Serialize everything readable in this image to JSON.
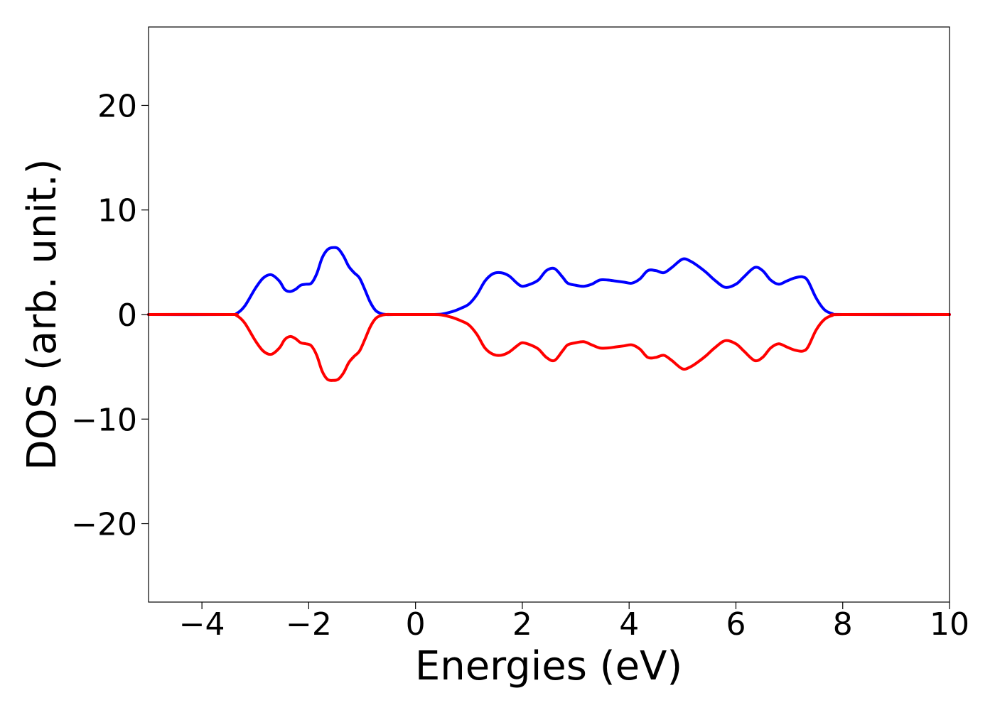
{
  "chart_data": {
    "type": "line",
    "xlabel": "Energies (eV)",
    "ylabel": "DOS (arb. unit.)",
    "xlim": [
      -5,
      10
    ],
    "ylim": [
      -27.5,
      27.5
    ],
    "xticks": [
      -4,
      -2,
      0,
      2,
      4,
      6,
      8,
      10
    ],
    "xtick_labels": [
      "−4",
      "−2",
      "0",
      "2",
      "4",
      "6",
      "8",
      "10"
    ],
    "yticks": [
      -20,
      -10,
      0,
      10,
      20
    ],
    "ytick_labels": [
      "−20",
      "−10",
      "0",
      "10",
      "20"
    ],
    "grid": false,
    "legend": "none",
    "series": [
      {
        "color": "#0000ff",
        "x": [
          -5,
          -3.5,
          -3.35,
          -3.2,
          -3.0,
          -2.85,
          -2.7,
          -2.55,
          -2.45,
          -2.35,
          -2.25,
          -2.15,
          -2.05,
          -1.95,
          -1.85,
          -1.75,
          -1.65,
          -1.55,
          -1.45,
          -1.35,
          -1.25,
          -1.15,
          -1.05,
          -0.95,
          -0.85,
          -0.75,
          -0.65,
          -0.55,
          -0.4,
          0.3,
          0.5,
          0.7,
          0.85,
          1.0,
          1.15,
          1.3,
          1.45,
          1.6,
          1.75,
          1.9,
          2.0,
          2.15,
          2.3,
          2.45,
          2.6,
          2.75,
          2.85,
          3.0,
          3.15,
          3.3,
          3.45,
          3.6,
          3.75,
          3.9,
          4.05,
          4.2,
          4.35,
          4.5,
          4.65,
          4.8,
          5.0,
          5.15,
          5.3,
          5.45,
          5.6,
          5.8,
          6.0,
          6.15,
          6.35,
          6.5,
          6.65,
          6.8,
          6.95,
          7.1,
          7.25,
          7.35,
          7.5,
          7.65,
          7.8,
          8.0,
          10
        ],
        "y": [
          0,
          0,
          0.1,
          0.8,
          2.5,
          3.5,
          3.8,
          3.2,
          2.4,
          2.2,
          2.4,
          2.8,
          2.9,
          3.0,
          3.9,
          5.4,
          6.2,
          6.4,
          6.3,
          5.6,
          4.6,
          4.0,
          3.5,
          2.4,
          1.2,
          0.4,
          0.1,
          0.0,
          0,
          0,
          0.05,
          0.3,
          0.6,
          1.0,
          1.9,
          3.2,
          3.9,
          4.0,
          3.7,
          3.0,
          2.7,
          2.9,
          3.3,
          4.2,
          4.4,
          3.6,
          3.0,
          2.8,
          2.7,
          2.9,
          3.3,
          3.3,
          3.2,
          3.1,
          3.0,
          3.4,
          4.2,
          4.2,
          4.0,
          4.5,
          5.3,
          5.1,
          4.6,
          4.0,
          3.3,
          2.6,
          2.9,
          3.6,
          4.5,
          4.2,
          3.3,
          2.9,
          3.2,
          3.5,
          3.6,
          3.2,
          1.6,
          0.5,
          0.1,
          0,
          0
        ]
      },
      {
        "color": "#ff0000",
        "x": [
          -5,
          -3.5,
          -3.35,
          -3.2,
          -3.0,
          -2.85,
          -2.7,
          -2.55,
          -2.45,
          -2.35,
          -2.25,
          -2.15,
          -2.05,
          -1.95,
          -1.85,
          -1.75,
          -1.65,
          -1.55,
          -1.45,
          -1.35,
          -1.25,
          -1.15,
          -1.05,
          -0.95,
          -0.85,
          -0.75,
          -0.65,
          -0.55,
          -0.4,
          0.3,
          0.5,
          0.7,
          0.85,
          1.0,
          1.15,
          1.3,
          1.45,
          1.6,
          1.75,
          1.9,
          2.0,
          2.15,
          2.3,
          2.45,
          2.6,
          2.75,
          2.85,
          3.0,
          3.15,
          3.3,
          3.45,
          3.6,
          3.75,
          3.9,
          4.05,
          4.2,
          4.35,
          4.5,
          4.65,
          4.8,
          5.0,
          5.15,
          5.3,
          5.45,
          5.6,
          5.8,
          6.0,
          6.15,
          6.35,
          6.5,
          6.65,
          6.8,
          6.95,
          7.1,
          7.25,
          7.35,
          7.5,
          7.65,
          7.8,
          8.0,
          10
        ],
        "y": [
          0,
          0,
          -0.1,
          -0.8,
          -2.5,
          -3.5,
          -3.8,
          -3.2,
          -2.4,
          -2.1,
          -2.3,
          -2.7,
          -2.8,
          -3.0,
          -3.9,
          -5.4,
          -6.2,
          -6.3,
          -6.2,
          -5.6,
          -4.6,
          -4.0,
          -3.5,
          -2.4,
          -1.2,
          -0.4,
          -0.1,
          0.0,
          0,
          0,
          -0.05,
          -0.3,
          -0.6,
          -1.0,
          -1.9,
          -3.2,
          -3.8,
          -3.9,
          -3.6,
          -3.0,
          -2.7,
          -2.9,
          -3.3,
          -4.1,
          -4.4,
          -3.5,
          -2.9,
          -2.7,
          -2.6,
          -2.9,
          -3.2,
          -3.2,
          -3.1,
          -3.0,
          -2.9,
          -3.3,
          -4.1,
          -4.1,
          -3.9,
          -4.4,
          -5.2,
          -5.0,
          -4.5,
          -3.9,
          -3.2,
          -2.5,
          -2.8,
          -3.5,
          -4.4,
          -4.1,
          -3.2,
          -2.8,
          -3.1,
          -3.4,
          -3.5,
          -3.1,
          -1.5,
          -0.5,
          -0.1,
          0,
          0
        ]
      }
    ]
  }
}
